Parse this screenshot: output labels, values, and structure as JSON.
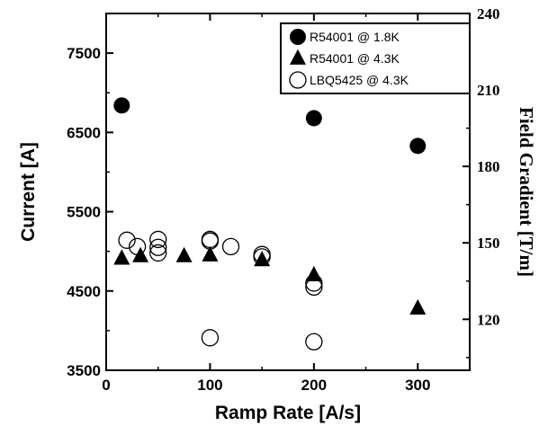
{
  "chart_data": {
    "type": "scatter",
    "xlabel": "Ramp Rate [A/s]",
    "ylabel": "Current [A]",
    "y2label": "Field Gradient [T/m]",
    "xlim": [
      0,
      350
    ],
    "ylim": [
      3500,
      8000
    ],
    "y2lim": [
      100,
      240
    ],
    "x_ticks": [
      0,
      100,
      200,
      300
    ],
    "y_ticks": [
      3500,
      4500,
      5500,
      6500,
      7500
    ],
    "y2_ticks": [
      120,
      150,
      180,
      210,
      240
    ],
    "grid": false,
    "legend_position": "top-right",
    "series": [
      {
        "name": "R54001 @ 1.8K",
        "marker": "filled-circle",
        "points": [
          [
            15,
            6840
          ],
          [
            200,
            6680
          ],
          [
            300,
            6330
          ]
        ]
      },
      {
        "name": "R54001 @ 4.3K",
        "marker": "filled-triangle",
        "points": [
          [
            15,
            4910
          ],
          [
            33,
            4940
          ],
          [
            75,
            4940
          ],
          [
            100,
            4950
          ],
          [
            150,
            4890
          ],
          [
            200,
            4700
          ],
          [
            300,
            4280
          ]
        ]
      },
      {
        "name": "LBQ5425 @ 4.3K",
        "marker": "open-circle",
        "points": [
          [
            20,
            5140
          ],
          [
            30,
            5060
          ],
          [
            50,
            5150
          ],
          [
            50,
            5050
          ],
          [
            50,
            4980
          ],
          [
            100,
            5150
          ],
          [
            100,
            5130
          ],
          [
            120,
            5060
          ],
          [
            150,
            4960
          ],
          [
            150,
            4930
          ],
          [
            200,
            4600
          ],
          [
            200,
            4550
          ],
          [
            100,
            3910
          ],
          [
            200,
            3860
          ]
        ]
      }
    ]
  }
}
